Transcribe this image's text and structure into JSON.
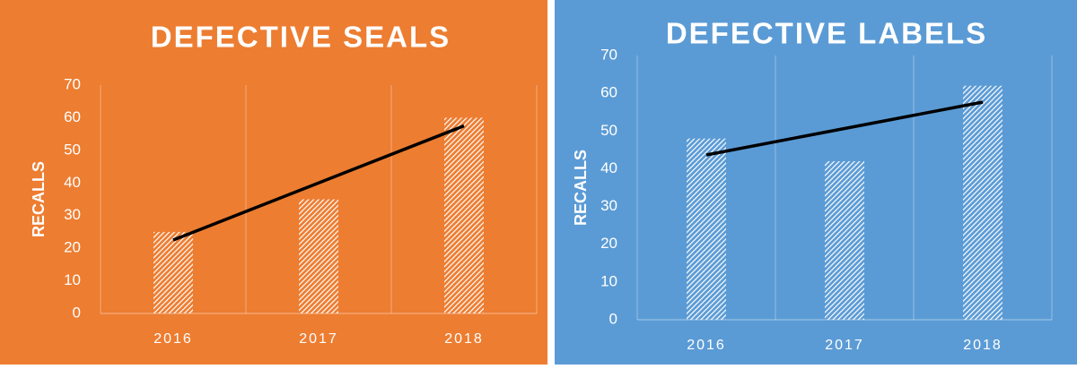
{
  "chart_data": [
    {
      "type": "bar",
      "title": "DEFECTIVE SEALS",
      "y_label": "RECALLS",
      "categories": [
        "2016",
        "2017",
        "2018"
      ],
      "values": [
        25,
        35,
        60
      ],
      "color": "#ffffff",
      "background": "#ed7d31",
      "trendline": "linear",
      "ylim": [
        0,
        70
      ],
      "yticks": [
        0,
        10,
        20,
        30,
        40,
        50,
        60,
        70
      ],
      "grid": true
    },
    {
      "type": "bar",
      "title": "DEFECTIVE LABELS",
      "y_label": "RECALLS",
      "categories": [
        "2016",
        "2017",
        "2018"
      ],
      "values": [
        48,
        42,
        62
      ],
      "color": "#ffffff",
      "background": "#5b9bd5",
      "trendline": "linear",
      "ylim": [
        0,
        70
      ],
      "yticks": [
        0,
        10,
        20,
        30,
        40,
        50,
        60,
        70
      ],
      "grid": true
    }
  ]
}
